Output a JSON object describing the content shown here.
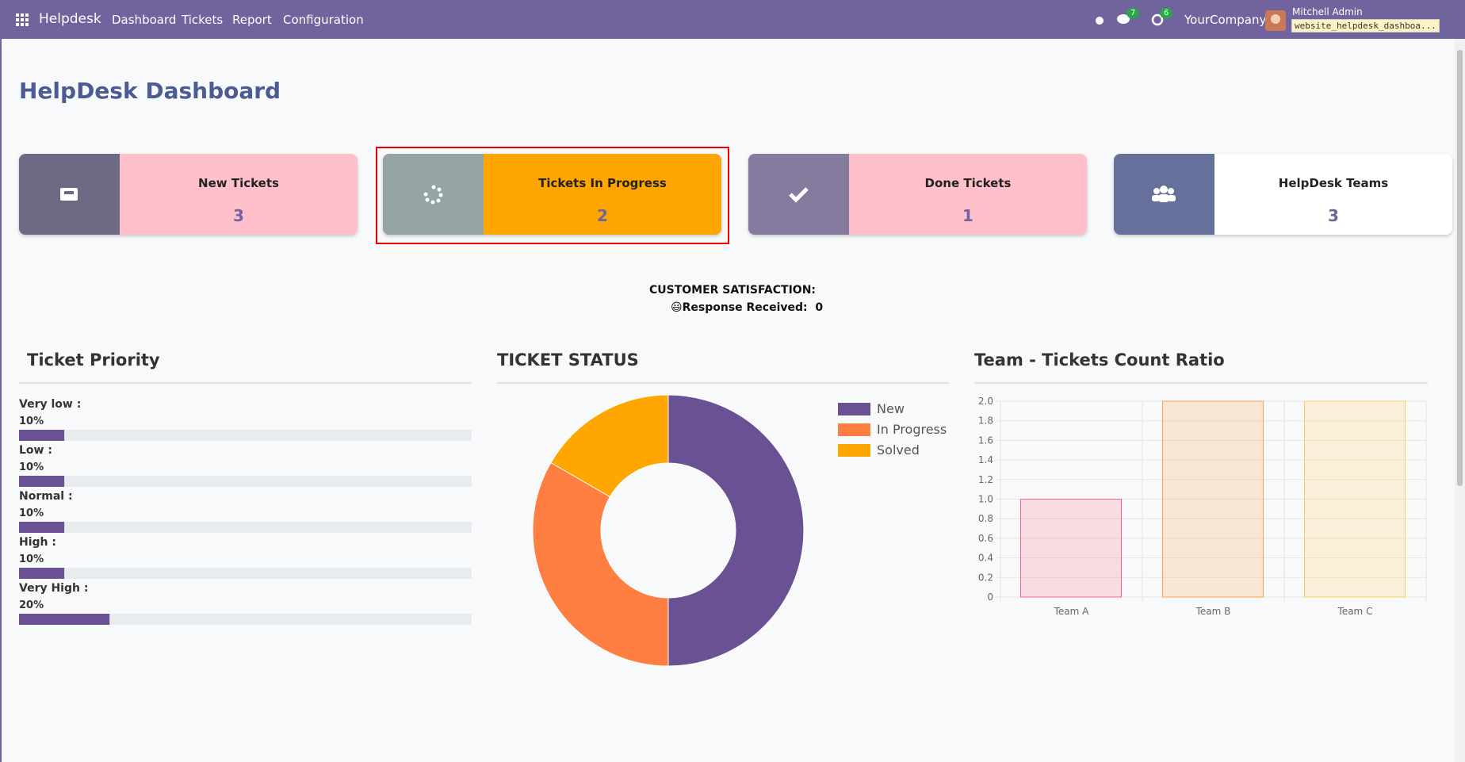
{
  "navbar": {
    "app": "Helpdesk",
    "menu": [
      "Dashboard",
      "Tickets",
      "Report",
      "Configuration"
    ],
    "messages_badge": "7",
    "activities_badge": "6",
    "company": "YourCompany",
    "user": "Mitchell Admin",
    "database": "website_helpdesk_dashboa..."
  },
  "header": {
    "title": "HelpDesk Dashboard"
  },
  "cards": [
    {
      "title": "New Tickets",
      "value": 3
    },
    {
      "title": "Tickets In Progress",
      "value": 2
    },
    {
      "title": "Done Tickets",
      "value": 1
    },
    {
      "title": "HelpDesk Teams",
      "value": 3
    }
  ],
  "satisfaction": {
    "title": "CUSTOMER SATISFACTION:",
    "label": "😃Response Received:",
    "value": 0
  },
  "priority": {
    "title": "Ticket Priority",
    "items": [
      {
        "name": "Very low :",
        "value": 10,
        "value_label": "10%"
      },
      {
        "name": "Low :",
        "value": 10,
        "value_label": "10%"
      },
      {
        "name": "Normal :",
        "value": 10,
        "value_label": "10%"
      },
      {
        "name": "High :",
        "value": 10,
        "value_label": "10%"
      },
      {
        "name": "Very High :",
        "value": 20,
        "value_label": "20%"
      }
    ]
  },
  "chart_data": [
    {
      "type": "doughnut",
      "title": "TICKET STATUS",
      "categories": [
        "New",
        "In Progress",
        "Solved"
      ],
      "values": [
        3,
        2,
        1
      ],
      "colors": [
        "#6a5193",
        "#ff7f42",
        "#ffa600"
      ],
      "legend": "top-right"
    },
    {
      "type": "bar",
      "title": "Team - Tickets Count Ratio",
      "categories": [
        "Team A",
        "Team B",
        "Team C"
      ],
      "values": [
        1,
        2,
        2
      ],
      "colors": [
        "#ff6384",
        "#ff9f40",
        "#ffcd56"
      ],
      "ylim": [
        0,
        2
      ],
      "yticks": [
        0,
        0.2,
        0.4,
        0.6,
        0.8,
        {
          "value": 1,
          "label": "1.0"
        },
        1.2,
        1.4,
        1.6,
        1.8,
        {
          "value": 2,
          "label": "2.0"
        }
      ],
      "grid": true
    }
  ]
}
